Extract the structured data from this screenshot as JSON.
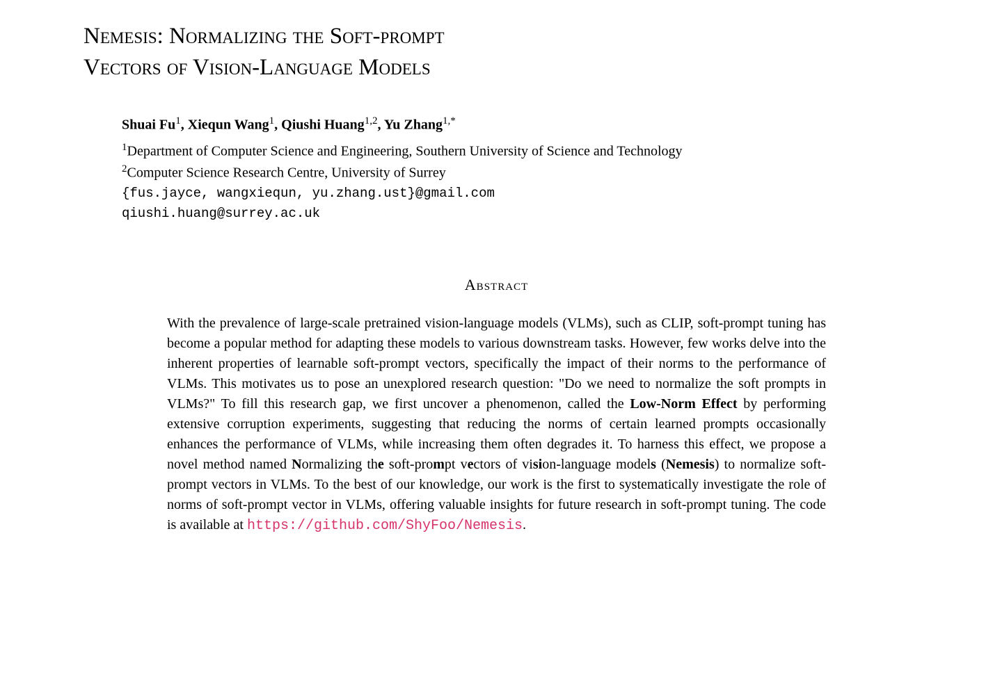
{
  "title_line1": "Nemesis: Normalizing the Soft-prompt",
  "title_line2": "Vectors of Vision-Language Models",
  "authors": {
    "a1_name": "Shuai Fu",
    "a1_sup": "1",
    "a2_name": "Xiequn Wang",
    "a2_sup": "1",
    "a3_name": "Qiushi Huang",
    "a3_sup": "1,2",
    "a4_name": "Yu Zhang",
    "a4_sup": "1,*"
  },
  "affiliations": {
    "aff1_sup": "1",
    "aff1_text": "Department of Computer Science and Engineering, Southern University of Science and Technology",
    "aff2_sup": "2",
    "aff2_text": "Computer Science Research Centre, University of Surrey"
  },
  "emails": {
    "line1": "{fus.jayce, wangxiequn, yu.zhang.ust}@gmail.com",
    "line2": "qiushi.huang@surrey.ac.uk"
  },
  "abstract_heading": "Abstract",
  "abstract": {
    "part1": "With the prevalence of large-scale pretrained vision-language models (VLMs), such as CLIP, soft-prompt tuning has become a popular method for adapting these models to various downstream tasks.  However, few works delve into the inherent properties of learnable soft-prompt vectors, specifically the impact of their norms to the performance of VLMs.  This motivates us to pose an unexplored research question: \"Do we need to normalize the soft prompts in VLMs?\"  To fill this research gap, we first uncover a phenomenon, called the ",
    "bold1": "Low-Norm Effect",
    "part2": " by performing extensive corruption experiments, suggesting that reducing the norms of certain learned prompts occasionally enhances the performance of VLMs, while increasing them often degrades it.  To harness this effect, we propose a novel method named ",
    "n1": "N",
    "part3": "ormalizing th",
    "n2": "e",
    "part4": " soft-pro",
    "n3": "m",
    "part5": "pt v",
    "n4": "e",
    "part6": "ctors of vi",
    "n5": "si",
    "part7": "on-language model",
    "n6": "s",
    "part8": " (",
    "bold2": "Nemesis",
    "part9": ") to normalize soft-prompt vectors in VLMs.  To the best of our knowledge, our work is the first to systematically investigate the role of norms of soft-prompt vector in VLMs, offering valuable insights for future research in soft-prompt tuning.  The code is available at ",
    "link": "https://github.com/ShyFoo/Nemesis",
    "period": "."
  },
  "colors": {
    "text": "#000000",
    "background": "#ffffff",
    "link": "#d6336c"
  },
  "fonts": {
    "body": "Times New Roman",
    "mono": "Courier New",
    "title_size": 33,
    "body_size": 20,
    "abstract_size": 20
  }
}
